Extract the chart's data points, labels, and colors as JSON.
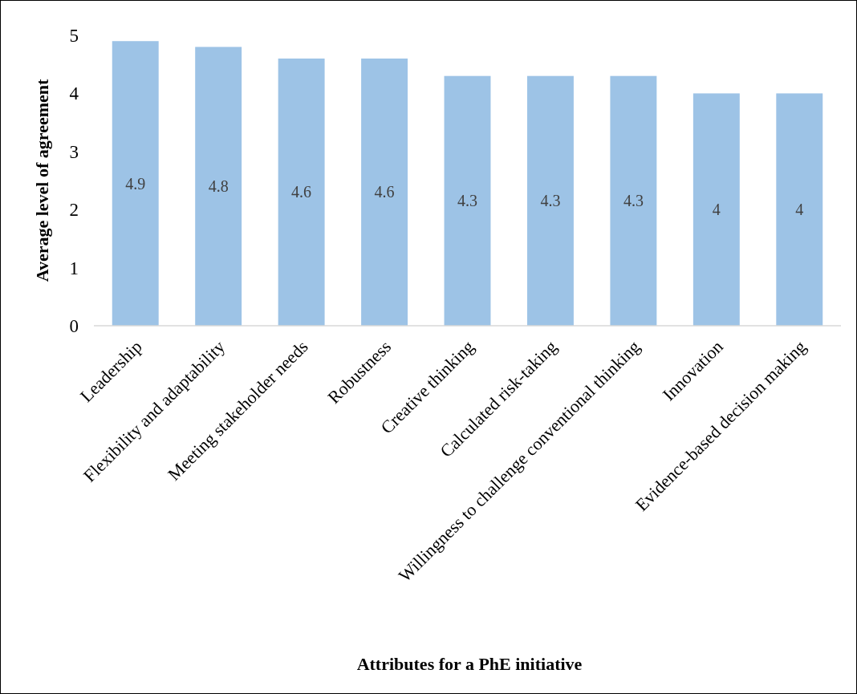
{
  "chart_data": {
    "type": "bar",
    "xlabel": "Attributes for a PhE initiative",
    "ylabel": "Average level of agreement",
    "categories": [
      "Leadership",
      "Flexibility and adaptability",
      "Meeting stakeholder needs",
      "Robustness",
      "Creative thinking",
      "Calculated risk-taking",
      "Willingness to challenge conventional thinking",
      "Innovation",
      "Evidence-based decision making"
    ],
    "values": [
      4.9,
      4.8,
      4.6,
      4.6,
      4.3,
      4.3,
      4.3,
      4,
      4
    ],
    "color": "#9dc3e6",
    "ylim": [
      0,
      5
    ],
    "yticks": [
      0,
      1,
      2,
      3,
      4,
      5
    ],
    "grid": false,
    "data_labels": true
  }
}
